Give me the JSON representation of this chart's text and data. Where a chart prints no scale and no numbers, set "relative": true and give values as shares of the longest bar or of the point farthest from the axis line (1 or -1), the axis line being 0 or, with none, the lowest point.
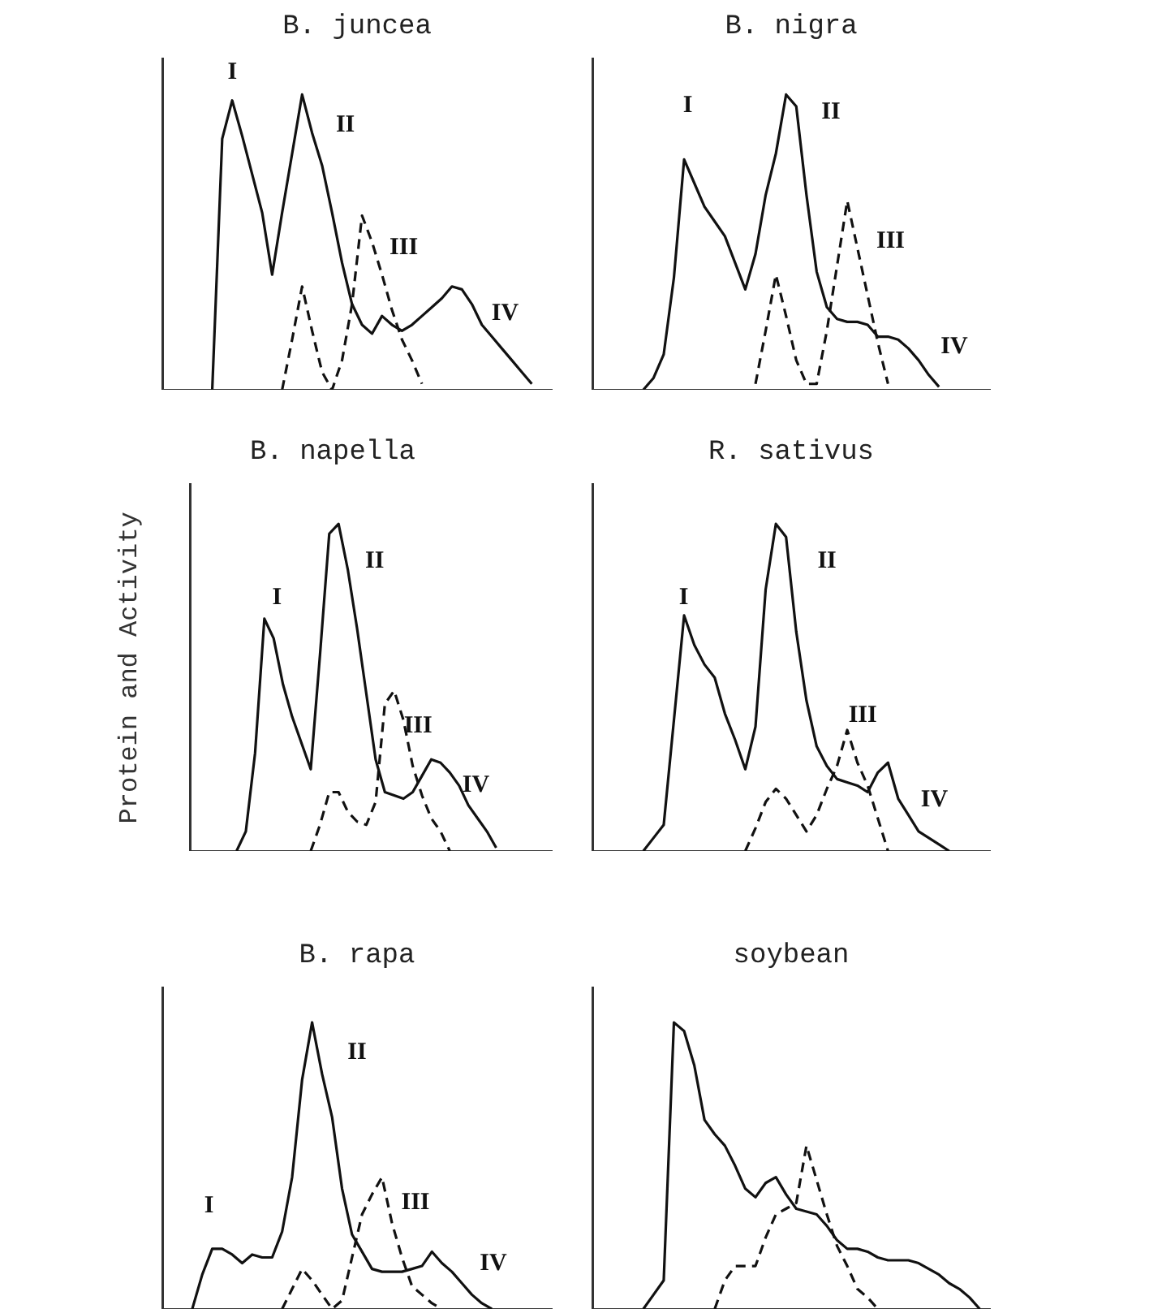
{
  "chart_data": [
    {
      "type": "line",
      "title": "B. juncea",
      "relative": true,
      "marker": "none",
      "categories": [
        null,
        null,
        null,
        null,
        null,
        null,
        null,
        null,
        null,
        null,
        null,
        null,
        null,
        null,
        null,
        null,
        null,
        null,
        null,
        null,
        null,
        null,
        null,
        null,
        null,
        null,
        null,
        null,
        null,
        null,
        null,
        null,
        null,
        null,
        null,
        null,
        null,
        null,
        null,
        null
      ],
      "series": [
        {
          "color": "#111111",
          "line_style": "solid",
          "values": [
            null,
            null,
            null,
            null,
            null,
            0,
            0.85,
            0.98,
            0.86,
            0.73,
            0.6,
            0.39,
            0.6,
            0.8,
            1,
            0.87,
            0.76,
            0.6,
            0.43,
            0.29,
            0.22,
            0.19,
            0.25,
            0.22,
            0.2,
            0.22,
            0.25,
            0.28,
            0.31,
            0.35,
            0.34,
            0.29,
            0.22,
            0.18,
            0.14,
            0.1,
            0.06,
            0.02,
            null,
            null
          ]
        },
        {
          "color": "#111111",
          "line_style": "dashed",
          "values": [
            null,
            null,
            null,
            null,
            null,
            null,
            null,
            null,
            null,
            null,
            null,
            null,
            0,
            0.17,
            0.35,
            0.2,
            0.06,
            0,
            0.1,
            0.29,
            0.59,
            0.5,
            0.39,
            0.27,
            0.17,
            0.1,
            0.02,
            null,
            null,
            null,
            null,
            null,
            null,
            null,
            null,
            null,
            null,
            null,
            null,
            null
          ]
        }
      ],
      "annotations": [
        "I",
        "II",
        "III",
        "IV"
      ]
    },
    {
      "type": "line",
      "title": "B. nigra",
      "relative": true,
      "marker": "none",
      "categories": [
        null,
        null,
        null,
        null,
        null,
        null,
        null,
        null,
        null,
        null,
        null,
        null,
        null,
        null,
        null,
        null,
        null,
        null,
        null,
        null,
        null,
        null,
        null,
        null,
        null,
        null,
        null,
        null,
        null,
        null,
        null,
        null,
        null,
        null,
        null,
        null,
        null,
        null,
        null,
        null
      ],
      "series": [
        {
          "color": "#111111",
          "line_style": "solid",
          "values": [
            null,
            null,
            null,
            null,
            null,
            0,
            0.04,
            0.12,
            0.38,
            0.78,
            0.7,
            0.62,
            0.57,
            0.52,
            0.43,
            0.34,
            0.46,
            0.66,
            0.8,
            1,
            0.96,
            0.66,
            0.4,
            0.28,
            0.24,
            0.23,
            0.23,
            0.22,
            0.18,
            0.18,
            0.17,
            0.14,
            0.1,
            0.05,
            0.01,
            null,
            null,
            null,
            null,
            null
          ]
        },
        {
          "color": "#111111",
          "line_style": "dashed",
          "values": [
            null,
            null,
            null,
            null,
            null,
            null,
            null,
            null,
            null,
            null,
            null,
            null,
            null,
            null,
            null,
            null,
            0.02,
            0.2,
            0.39,
            0.25,
            0.1,
            0.02,
            0.02,
            0.2,
            0.42,
            0.64,
            0.48,
            0.32,
            0.16,
            0.02,
            null,
            null,
            null,
            null,
            null,
            null,
            null,
            null,
            null,
            null
          ]
        }
      ],
      "annotations": [
        "I",
        "II",
        "III",
        "IV"
      ]
    },
    {
      "type": "line",
      "title": "B. napella",
      "ylabel": "Protein and Activity",
      "relative": true,
      "marker": "none",
      "categories": [
        null,
        null,
        null,
        null,
        null,
        null,
        null,
        null,
        null,
        null,
        null,
        null,
        null,
        null,
        null,
        null,
        null,
        null,
        null,
        null,
        null,
        null,
        null,
        null,
        null,
        null,
        null,
        null,
        null,
        null,
        null,
        null,
        null,
        null,
        null,
        null,
        null,
        null,
        null,
        null
      ],
      "series": [
        {
          "color": "#111111",
          "line_style": "solid",
          "values": [
            null,
            null,
            null,
            null,
            null,
            0,
            0.06,
            0.3,
            0.71,
            0.65,
            0.51,
            0.41,
            0.33,
            0.25,
            0.6,
            0.97,
            1,
            0.86,
            0.68,
            0.48,
            0.28,
            0.18,
            0.17,
            0.16,
            0.18,
            0.23,
            0.28,
            0.27,
            0.24,
            0.2,
            0.14,
            0.1,
            0.06,
            0.01,
            null,
            null,
            null,
            null,
            null,
            null
          ]
        },
        {
          "color": "#111111",
          "line_style": "dashed",
          "values": [
            null,
            null,
            null,
            null,
            null,
            null,
            null,
            null,
            null,
            null,
            null,
            null,
            null,
            0,
            0.08,
            0.18,
            0.18,
            0.12,
            0.09,
            0.08,
            0.15,
            0.45,
            0.49,
            0.4,
            0.26,
            0.17,
            0.1,
            0.06,
            0,
            null,
            null,
            null,
            null,
            null,
            null,
            null,
            null,
            null,
            null,
            null
          ]
        }
      ],
      "annotations": [
        "I",
        "II",
        "III",
        "IV"
      ]
    },
    {
      "type": "line",
      "title": "R. sativus",
      "relative": true,
      "marker": "none",
      "categories": [
        null,
        null,
        null,
        null,
        null,
        null,
        null,
        null,
        null,
        null,
        null,
        null,
        null,
        null,
        null,
        null,
        null,
        null,
        null,
        null,
        null,
        null,
        null,
        null,
        null,
        null,
        null,
        null,
        null,
        null,
        null,
        null,
        null,
        null,
        null,
        null,
        null,
        null,
        null,
        null
      ],
      "series": [
        {
          "color": "#111111",
          "line_style": "solid",
          "values": [
            null,
            null,
            null,
            null,
            null,
            0,
            0.04,
            0.08,
            0.4,
            0.72,
            0.63,
            0.57,
            0.53,
            0.42,
            0.34,
            0.25,
            0.38,
            0.8,
            1,
            0.96,
            0.67,
            0.46,
            0.32,
            0.26,
            0.22,
            0.21,
            0.2,
            0.18,
            0.24,
            0.27,
            0.16,
            0.11,
            0.06,
            0.04,
            0.02,
            0,
            null,
            null,
            null,
            null
          ]
        },
        {
          "color": "#111111",
          "line_style": "dashed",
          "values": [
            null,
            null,
            null,
            null,
            null,
            null,
            null,
            null,
            null,
            null,
            null,
            null,
            null,
            null,
            null,
            0,
            0.07,
            0.15,
            0.19,
            0.16,
            0.11,
            0.06,
            0.11,
            0.19,
            0.26,
            0.37,
            0.27,
            0.2,
            0.1,
            0,
            null,
            null,
            null,
            null,
            null,
            null,
            null,
            null,
            null,
            null
          ]
        }
      ],
      "annotations": [
        "I",
        "II",
        "III",
        "IV"
      ]
    },
    {
      "type": "line",
      "title": "B. rapa",
      "relative": true,
      "marker": "none",
      "categories": [
        null,
        null,
        null,
        null,
        null,
        null,
        null,
        null,
        null,
        null,
        null,
        null,
        null,
        null,
        null,
        null,
        null,
        null,
        null,
        null,
        null,
        null,
        null,
        null,
        null,
        null,
        null,
        null,
        null,
        null,
        null,
        null,
        null,
        null,
        null,
        null,
        null,
        null,
        null,
        null
      ],
      "series": [
        {
          "color": "#111111",
          "line_style": "solid",
          "values": [
            null,
            null,
            null,
            0,
            0.12,
            0.21,
            0.21,
            0.19,
            0.16,
            0.19,
            0.18,
            0.18,
            0.27,
            0.46,
            0.8,
            1,
            0.82,
            0.67,
            0.42,
            0.26,
            0.2,
            0.14,
            0.13,
            0.13,
            0.13,
            0.14,
            0.15,
            0.2,
            0.16,
            0.13,
            0.09,
            0.05,
            0.02,
            0,
            null,
            null,
            null,
            null,
            null,
            null
          ]
        },
        {
          "color": "#111111",
          "line_style": "dashed",
          "values": [
            null,
            null,
            null,
            null,
            null,
            null,
            null,
            null,
            null,
            null,
            null,
            null,
            0,
            0.07,
            0.14,
            0.1,
            0.05,
            0,
            0.03,
            0.18,
            0.33,
            0.4,
            0.46,
            0.3,
            0.18,
            0.08,
            0.05,
            0.02,
            0,
            null,
            null,
            null,
            null,
            null,
            null,
            null,
            null,
            null,
            null,
            null
          ]
        }
      ],
      "annotations": [
        "I",
        "II",
        "III",
        "IV"
      ]
    },
    {
      "type": "line",
      "title": "soybean",
      "relative": true,
      "marker": "none",
      "categories": [
        null,
        null,
        null,
        null,
        null,
        null,
        null,
        null,
        null,
        null,
        null,
        null,
        null,
        null,
        null,
        null,
        null,
        null,
        null,
        null,
        null,
        null,
        null,
        null,
        null,
        null,
        null,
        null,
        null,
        null,
        null,
        null,
        null,
        null,
        null,
        null,
        null,
        null,
        null,
        null
      ],
      "series": [
        {
          "color": "#111111",
          "line_style": "solid",
          "values": [
            null,
            null,
            null,
            null,
            null,
            0,
            0.05,
            0.1,
            1,
            0.97,
            0.85,
            0.66,
            0.61,
            0.57,
            0.5,
            0.42,
            0.39,
            0.44,
            0.46,
            0.4,
            0.35,
            0.34,
            0.33,
            0.29,
            0.24,
            0.21,
            0.21,
            0.2,
            0.18,
            0.17,
            0.17,
            0.17,
            0.16,
            0.14,
            0.12,
            0.09,
            0.07,
            0.04,
            0,
            null
          ]
        },
        {
          "color": "#111111",
          "line_style": "dashed",
          "values": [
            null,
            null,
            null,
            null,
            null,
            null,
            null,
            null,
            null,
            null,
            null,
            null,
            0,
            0.1,
            0.15,
            0.15,
            0.15,
            0.25,
            0.33,
            0.35,
            0.37,
            0.57,
            0.45,
            0.33,
            0.22,
            0.15,
            0.07,
            0.04,
            0,
            null,
            null,
            null,
            null,
            null,
            null,
            null,
            null,
            null,
            null,
            null
          ]
        }
      ]
    }
  ]
}
